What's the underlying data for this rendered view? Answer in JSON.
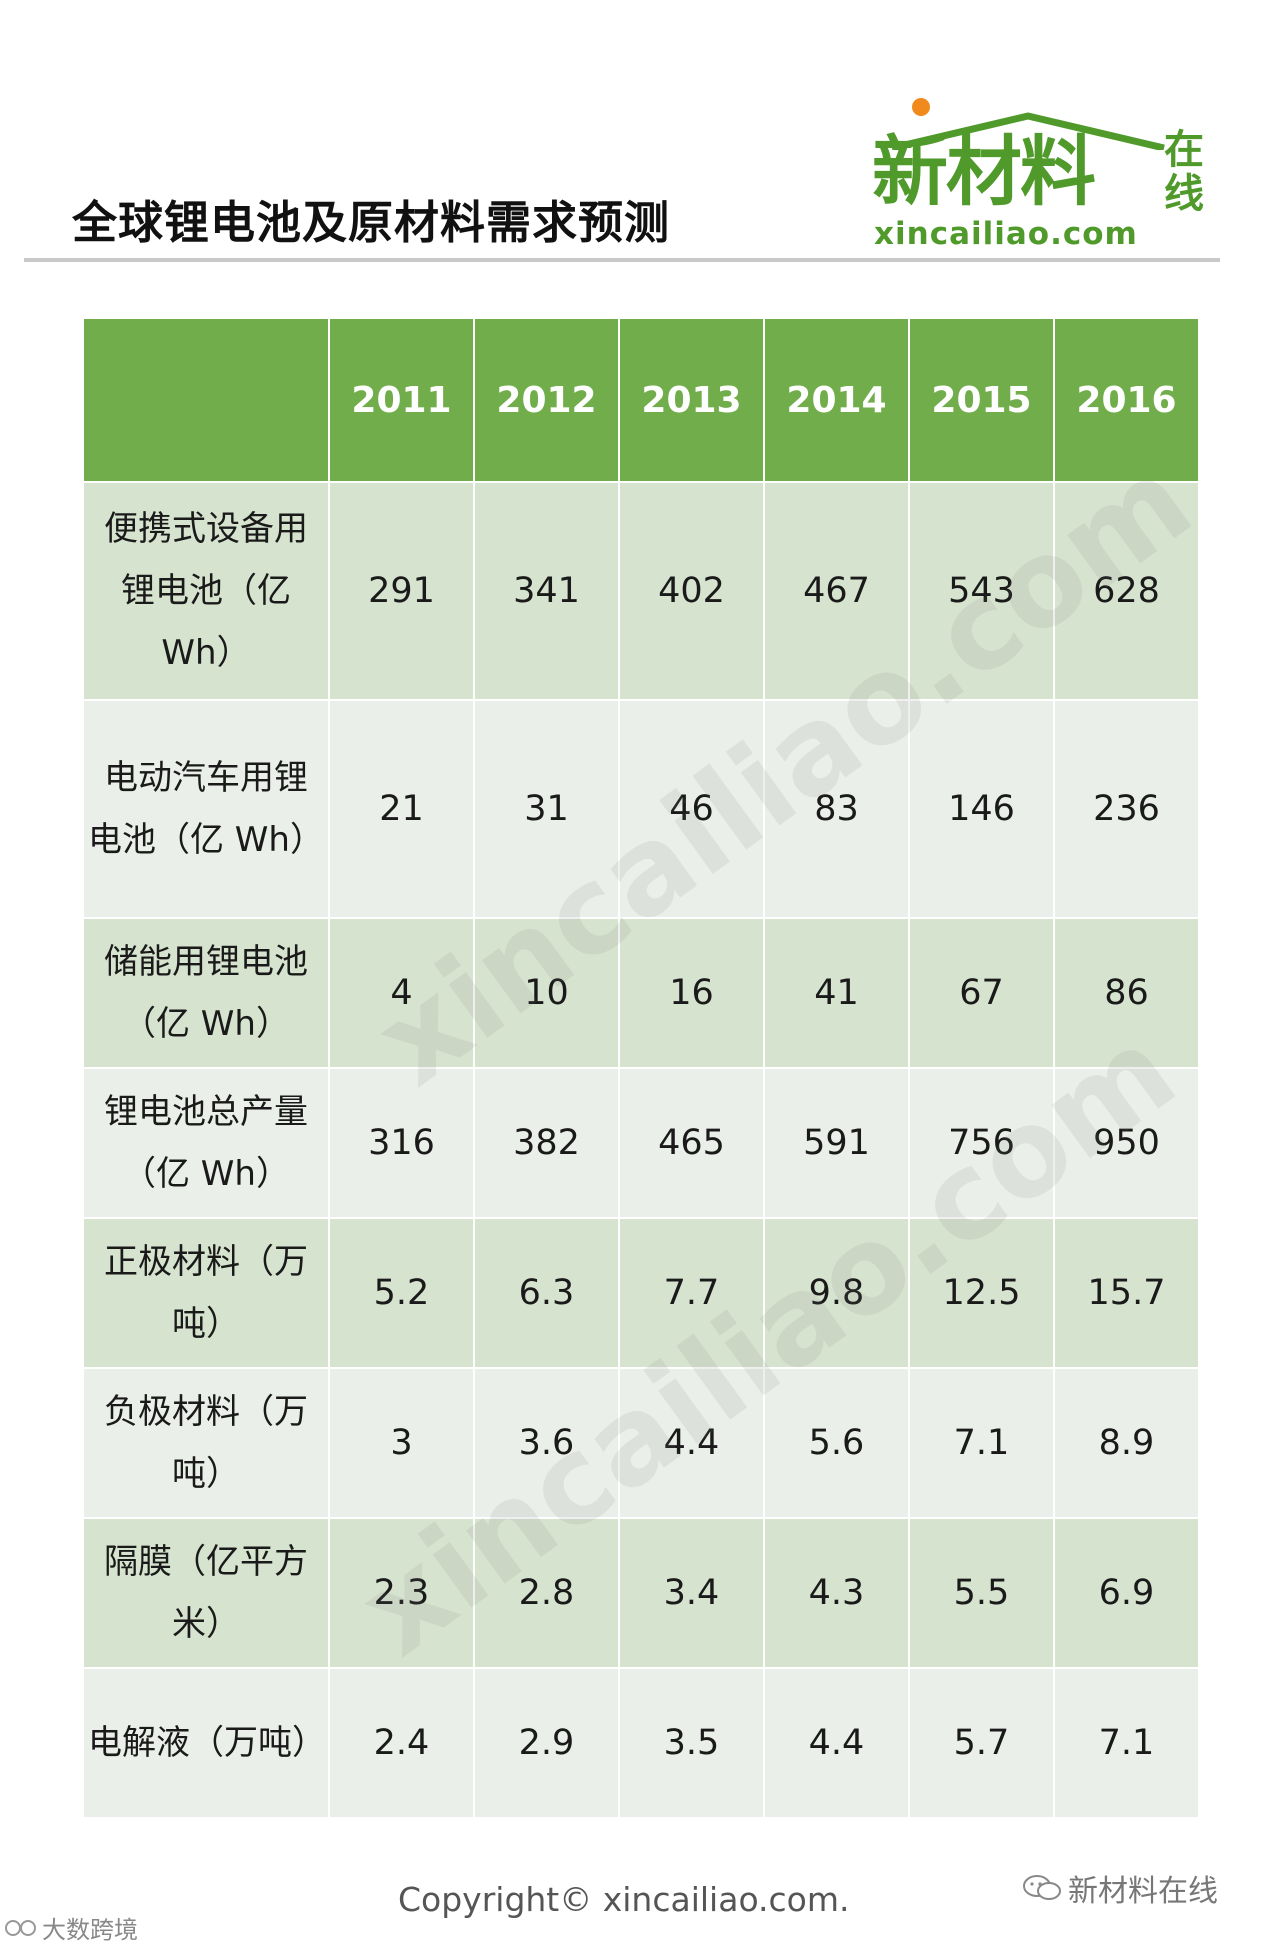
{
  "page_title": "全球锂电池及原材料需求预测",
  "logo": {
    "cn_text": "新材料",
    "cn_side": "在线",
    "domain": "xincailiao.com",
    "sun_color": "#f08a1c",
    "brand_color": "#4f9a2a"
  },
  "table": {
    "header": [
      "",
      "2011",
      "2012",
      "2013",
      "2014",
      "2015",
      "2016"
    ],
    "rows": [
      {
        "label_lines": [
          "便携式设备用",
          "锂电池（亿",
          "Wh）"
        ],
        "values": [
          "291",
          "341",
          "402",
          "467",
          "543",
          "628"
        ]
      },
      {
        "label_lines": [
          "电动汽车用锂",
          "电池（亿 Wh）"
        ],
        "values": [
          "21",
          "31",
          "46",
          "83",
          "146",
          "236"
        ]
      },
      {
        "label_lines": [
          "储能用锂电池",
          "（亿 Wh）"
        ],
        "values": [
          "4",
          "10",
          "16",
          "41",
          "67",
          "86"
        ]
      },
      {
        "label_lines": [
          "锂电池总产量",
          "（亿 Wh）"
        ],
        "values": [
          "316",
          "382",
          "465",
          "591",
          "756",
          "950"
        ]
      },
      {
        "label_lines": [
          "正极材料（万",
          "吨）"
        ],
        "values": [
          "5.2",
          "6.3",
          "7.7",
          "9.8",
          "12.5",
          "15.7"
        ]
      },
      {
        "label_lines": [
          "负极材料（万",
          "吨）"
        ],
        "values": [
          "3",
          "3.6",
          "4.4",
          "5.6",
          "7.1",
          "8.9"
        ]
      },
      {
        "label_lines": [
          "隔膜（亿平方",
          "米）"
        ],
        "values": [
          "2.3",
          "2.8",
          "3.4",
          "4.3",
          "5.5",
          "6.9"
        ]
      },
      {
        "label_lines": [
          "电解液（万吨）"
        ],
        "values": [
          "2.4",
          "2.9",
          "3.5",
          "4.4",
          "5.7",
          "7.1"
        ]
      }
    ],
    "header_color": "#72ad4b",
    "row_color_odd": "#d6e3cf",
    "row_color_even": "#ebefe9"
  },
  "watermark": "xincailiao.com",
  "footer": {
    "copyright": "Copyright© xincailiao.com.",
    "account": "新材料在线",
    "source": "大数跨境"
  }
}
